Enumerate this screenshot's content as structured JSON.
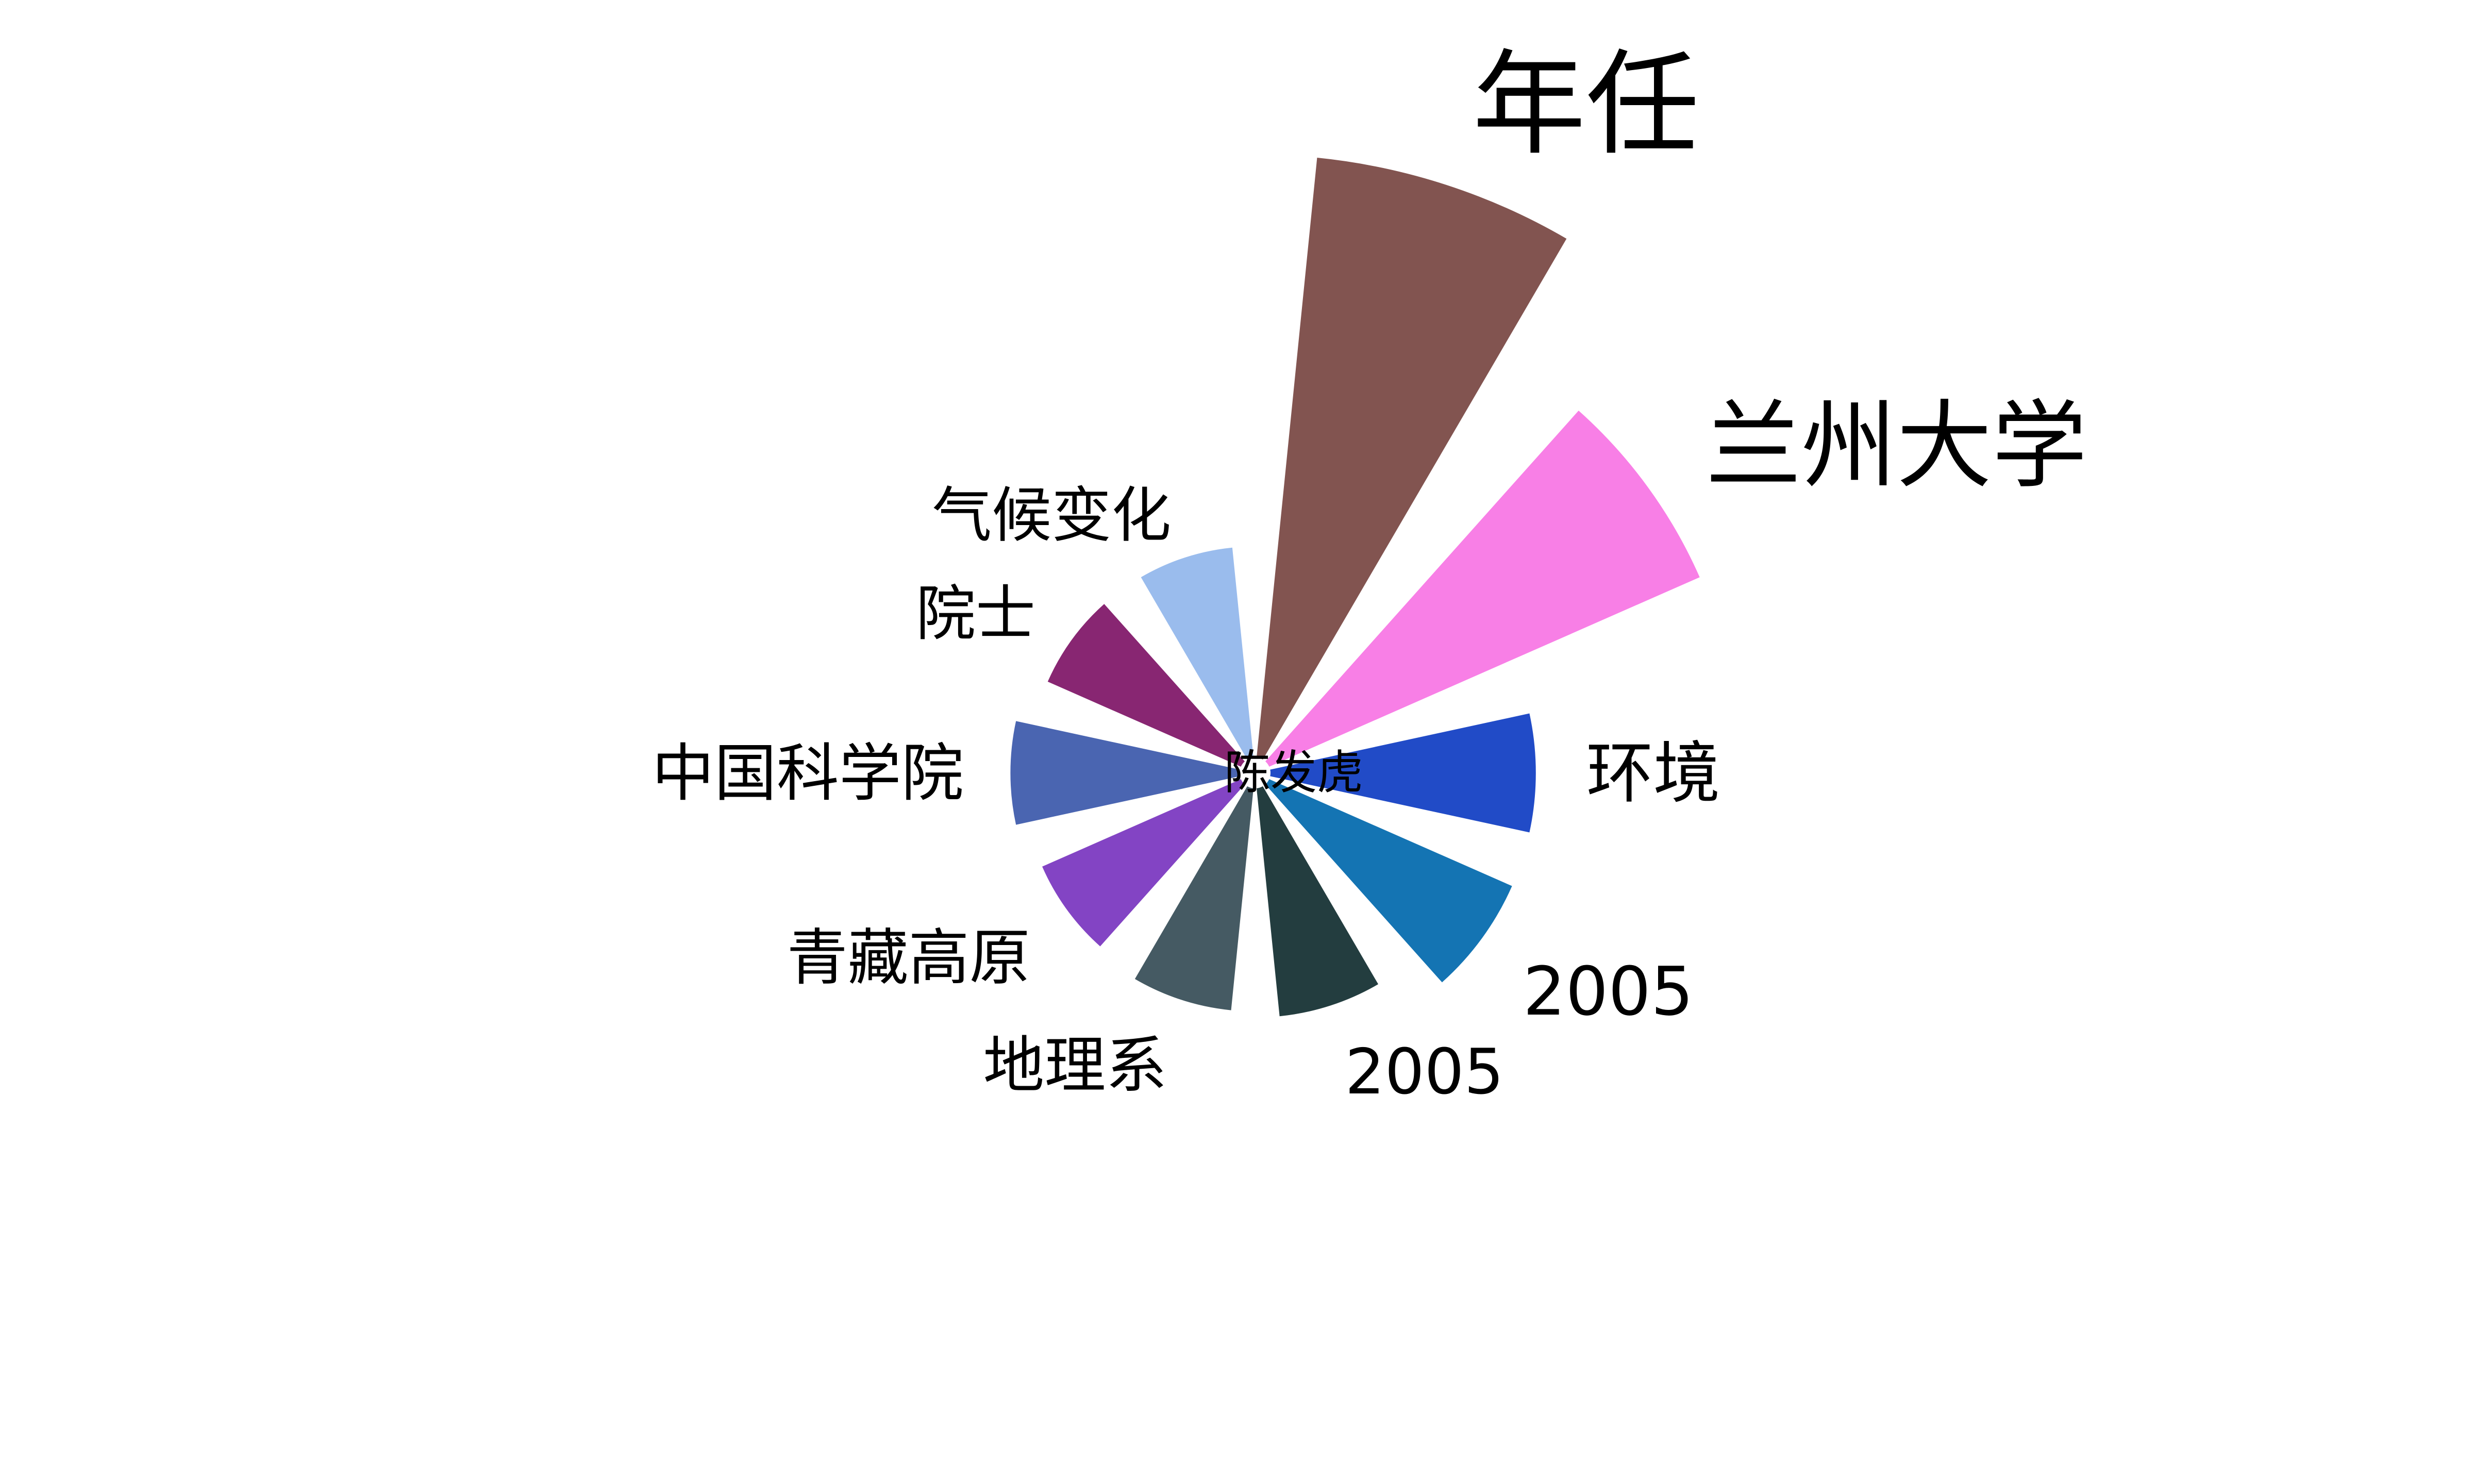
{
  "chart_data": {
    "type": "bar",
    "polar": true,
    "center_label": "陈发虎",
    "categories": [
      "年任",
      "兰州大学",
      "环境",
      "2005",
      "2005",
      "地理系",
      "青藏高原",
      "中国科学院",
      "院士",
      "气候变化"
    ],
    "values": [
      1.0,
      0.78,
      0.44,
      0.44,
      0.38,
      0.37,
      0.36,
      0.38,
      0.35,
      0.35
    ],
    "colors": [
      "#825450",
      "#f87fe6",
      "#214bc7",
      "#1474b3",
      "#233d3f",
      "#455a63",
      "#8344c4",
      "#4a65b1",
      "#882672",
      "#9abced"
    ]
  }
}
